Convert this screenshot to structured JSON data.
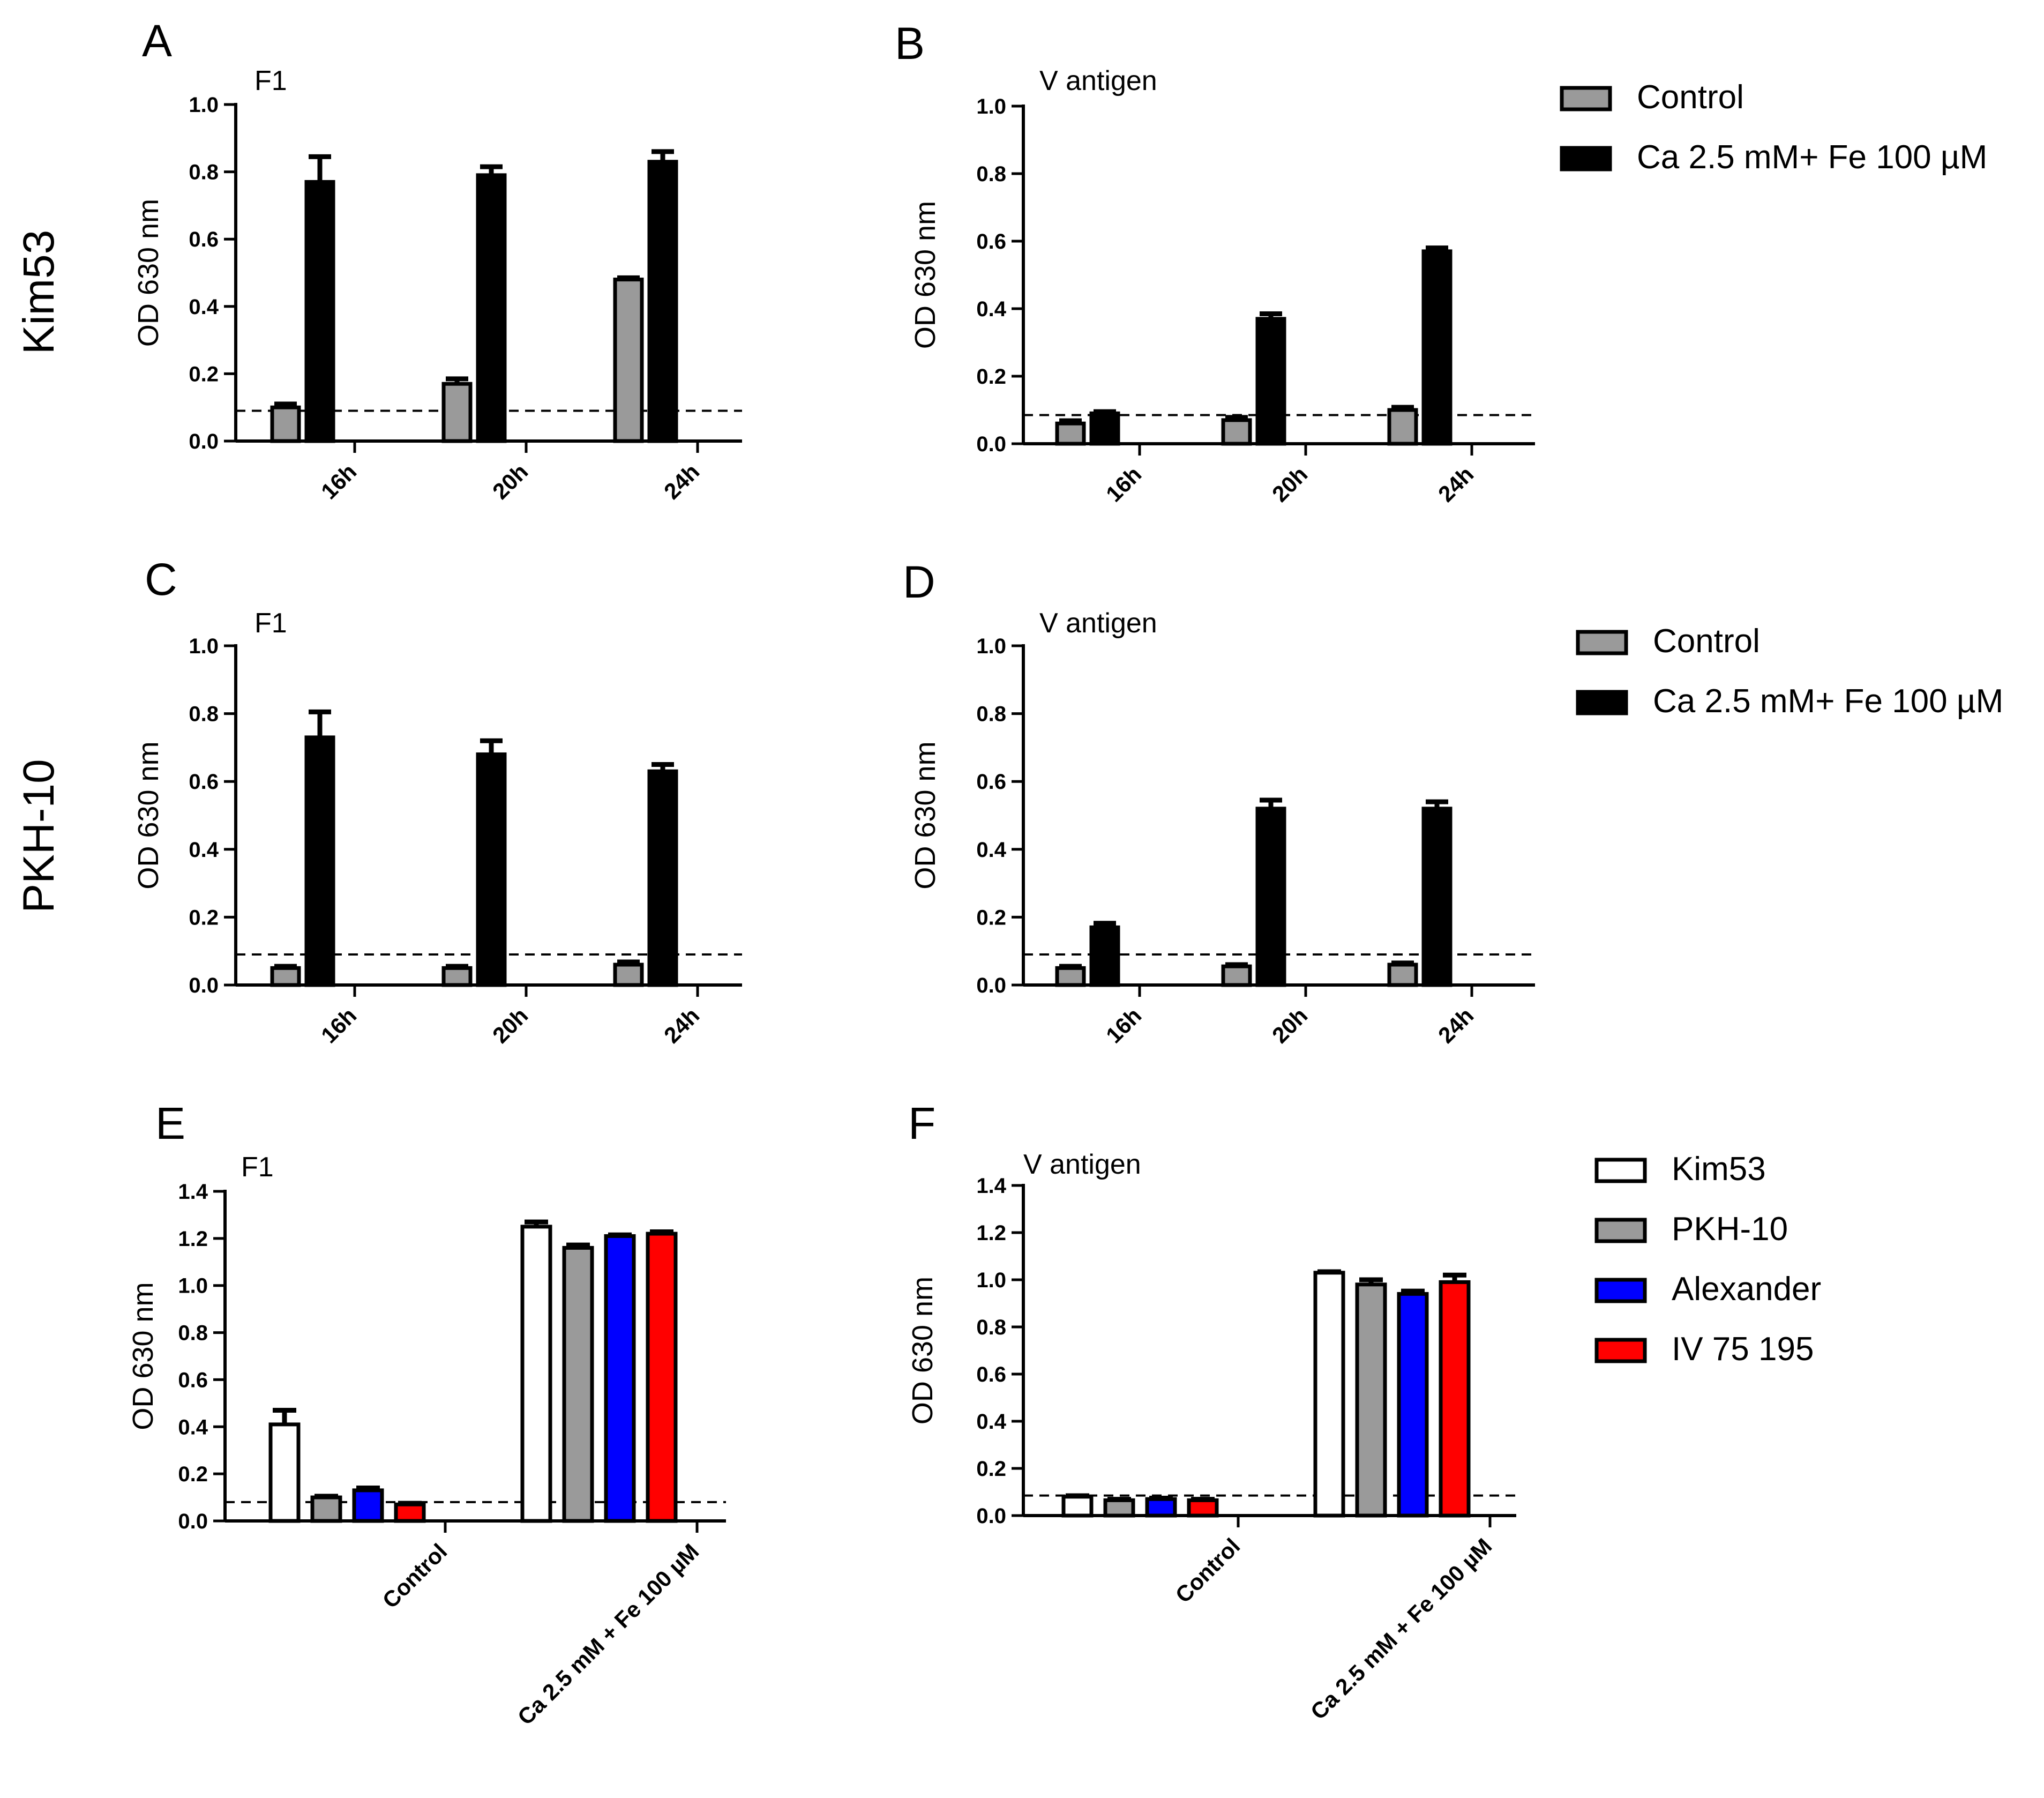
{
  "row_labels": [
    "Kim53",
    "PKH-10"
  ],
  "legend_top": {
    "items": [
      {
        "label": "Control",
        "color": "#9a9a9a"
      },
      {
        "label": "Ca 2.5 mM+ Fe 100 µM",
        "color": "#000000"
      }
    ]
  },
  "legend_middle": {
    "items": [
      {
        "label": "Control",
        "color": "#9a9a9a"
      },
      {
        "label": "Ca 2.5 mM+ Fe 100 µM",
        "color": "#000000"
      }
    ]
  },
  "legend_bottom": {
    "items": [
      {
        "label": "Kim53",
        "color": "#ffffff"
      },
      {
        "label": "PKH-10",
        "color": "#9a9a9a"
      },
      {
        "label": "Alexander",
        "color": "#0000ff"
      },
      {
        "label": "IV 75 195",
        "color": "#ff0000"
      }
    ]
  },
  "chart_data": [
    {
      "panel": "A",
      "type": "bar",
      "title": "F1",
      "ylabel": "OD 630 nm",
      "ylim": [
        0,
        1.0
      ],
      "yticks": [
        "0.0",
        "0.2",
        "0.4",
        "0.6",
        "0.8",
        "1.0"
      ],
      "categories": [
        "16h",
        "20h",
        "24h"
      ],
      "baseline": 0.09,
      "series": [
        {
          "name": "Control",
          "color": "#9a9a9a",
          "values": [
            0.1,
            0.17,
            0.48
          ],
          "errors": [
            0.01,
            0.015,
            0.005
          ]
        },
        {
          "name": "Ca 2.5 mM+ Fe 100 µM",
          "color": "#000000",
          "values": [
            0.77,
            0.79,
            0.83
          ],
          "errors": [
            0.075,
            0.025,
            0.03
          ]
        }
      ]
    },
    {
      "panel": "B",
      "type": "bar",
      "title": "V antigen",
      "ylabel": "OD 630 nm",
      "ylim": [
        0,
        1.0
      ],
      "yticks": [
        "0.0",
        "0.2",
        "0.4",
        "0.6",
        "0.8",
        "1.0"
      ],
      "categories": [
        "16h",
        "20h",
        "24h"
      ],
      "baseline": 0.085,
      "series": [
        {
          "name": "Control",
          "color": "#9a9a9a",
          "values": [
            0.06,
            0.07,
            0.1
          ],
          "errors": [
            0.008,
            0.008,
            0.008
          ]
        },
        {
          "name": "Ca 2.5 mM+ Fe 100 µM",
          "color": "#000000",
          "values": [
            0.09,
            0.37,
            0.57
          ],
          "errors": [
            0.005,
            0.015,
            0.01
          ]
        }
      ]
    },
    {
      "panel": "C",
      "type": "bar",
      "title": "F1",
      "ylabel": "OD 630 nm",
      "ylim": [
        0,
        1.0
      ],
      "yticks": [
        "0.0",
        "0.2",
        "0.4",
        "0.6",
        "0.8",
        "1.0"
      ],
      "categories": [
        "16h",
        "20h",
        "24h"
      ],
      "baseline": 0.09,
      "series": [
        {
          "name": "Control",
          "color": "#9a9a9a",
          "values": [
            0.05,
            0.05,
            0.06
          ],
          "errors": [
            0.005,
            0.005,
            0.008
          ]
        },
        {
          "name": "Ca 2.5 mM+ Fe 100 µM",
          "color": "#000000",
          "values": [
            0.73,
            0.68,
            0.63
          ],
          "errors": [
            0.075,
            0.04,
            0.02
          ]
        }
      ]
    },
    {
      "panel": "D",
      "type": "bar",
      "title": "V antigen",
      "ylabel": "OD 630 nm",
      "ylim": [
        0,
        1.0
      ],
      "yticks": [
        "0.0",
        "0.2",
        "0.4",
        "0.6",
        "0.8",
        "1.0"
      ],
      "categories": [
        "16h",
        "20h",
        "24h"
      ],
      "baseline": 0.09,
      "series": [
        {
          "name": "Control",
          "color": "#9a9a9a",
          "values": [
            0.05,
            0.055,
            0.06
          ],
          "errors": [
            0.005,
            0.005,
            0.005
          ]
        },
        {
          "name": "Ca 2.5 mM+ Fe 100 µM",
          "color": "#000000",
          "values": [
            0.17,
            0.52,
            0.52
          ],
          "errors": [
            0.012,
            0.025,
            0.02
          ]
        }
      ]
    },
    {
      "panel": "E",
      "type": "bar",
      "title": "F1",
      "ylabel": "OD 630 nm",
      "ylim": [
        0,
        1.4
      ],
      "yticks": [
        "0.0",
        "0.2",
        "0.4",
        "0.6",
        "0.8",
        "1.0",
        "1.2",
        "1.4"
      ],
      "categories": [
        "Control",
        "Ca 2.5 mM + Fe 100 µM"
      ],
      "baseline": 0.08,
      "series": [
        {
          "name": "Kim53",
          "color": "#ffffff",
          "values": [
            0.41,
            1.25
          ],
          "errors": [
            0.06,
            0.02
          ]
        },
        {
          "name": "PKH-10",
          "color": "#9a9a9a",
          "values": [
            0.1,
            1.16
          ],
          "errors": [
            0.005,
            0.012
          ]
        },
        {
          "name": "Alexander",
          "color": "#0000ff",
          "values": [
            0.13,
            1.21
          ],
          "errors": [
            0.01,
            0.005
          ]
        },
        {
          "name": "IV 75 195",
          "color": "#ff0000",
          "values": [
            0.07,
            1.22
          ],
          "errors": [
            0.005,
            0.008
          ]
        }
      ]
    },
    {
      "panel": "F",
      "type": "bar",
      "title": "V antigen",
      "ylabel": "OD 630 nm",
      "ylim": [
        0,
        1.4
      ],
      "yticks": [
        "0.0",
        "0.2",
        "0.4",
        "0.6",
        "0.8",
        "1.0",
        "1.2",
        "1.4"
      ],
      "categories": [
        "Control",
        "Ca 2.5 mM + Fe 100 µM"
      ],
      "baseline": 0.085,
      "series": [
        {
          "name": "Kim53",
          "color": "#ffffff",
          "values": [
            0.08,
            1.03
          ],
          "errors": [
            0.004,
            0.004
          ]
        },
        {
          "name": "PKH-10",
          "color": "#9a9a9a",
          "values": [
            0.065,
            0.98
          ],
          "errors": [
            0.004,
            0.02
          ]
        },
        {
          "name": "Alexander",
          "color": "#0000ff",
          "values": [
            0.07,
            0.94
          ],
          "errors": [
            0.004,
            0.012
          ]
        },
        {
          "name": "IV 75 195",
          "color": "#ff0000",
          "values": [
            0.065,
            0.99
          ],
          "errors": [
            0.004,
            0.03
          ]
        }
      ]
    }
  ]
}
